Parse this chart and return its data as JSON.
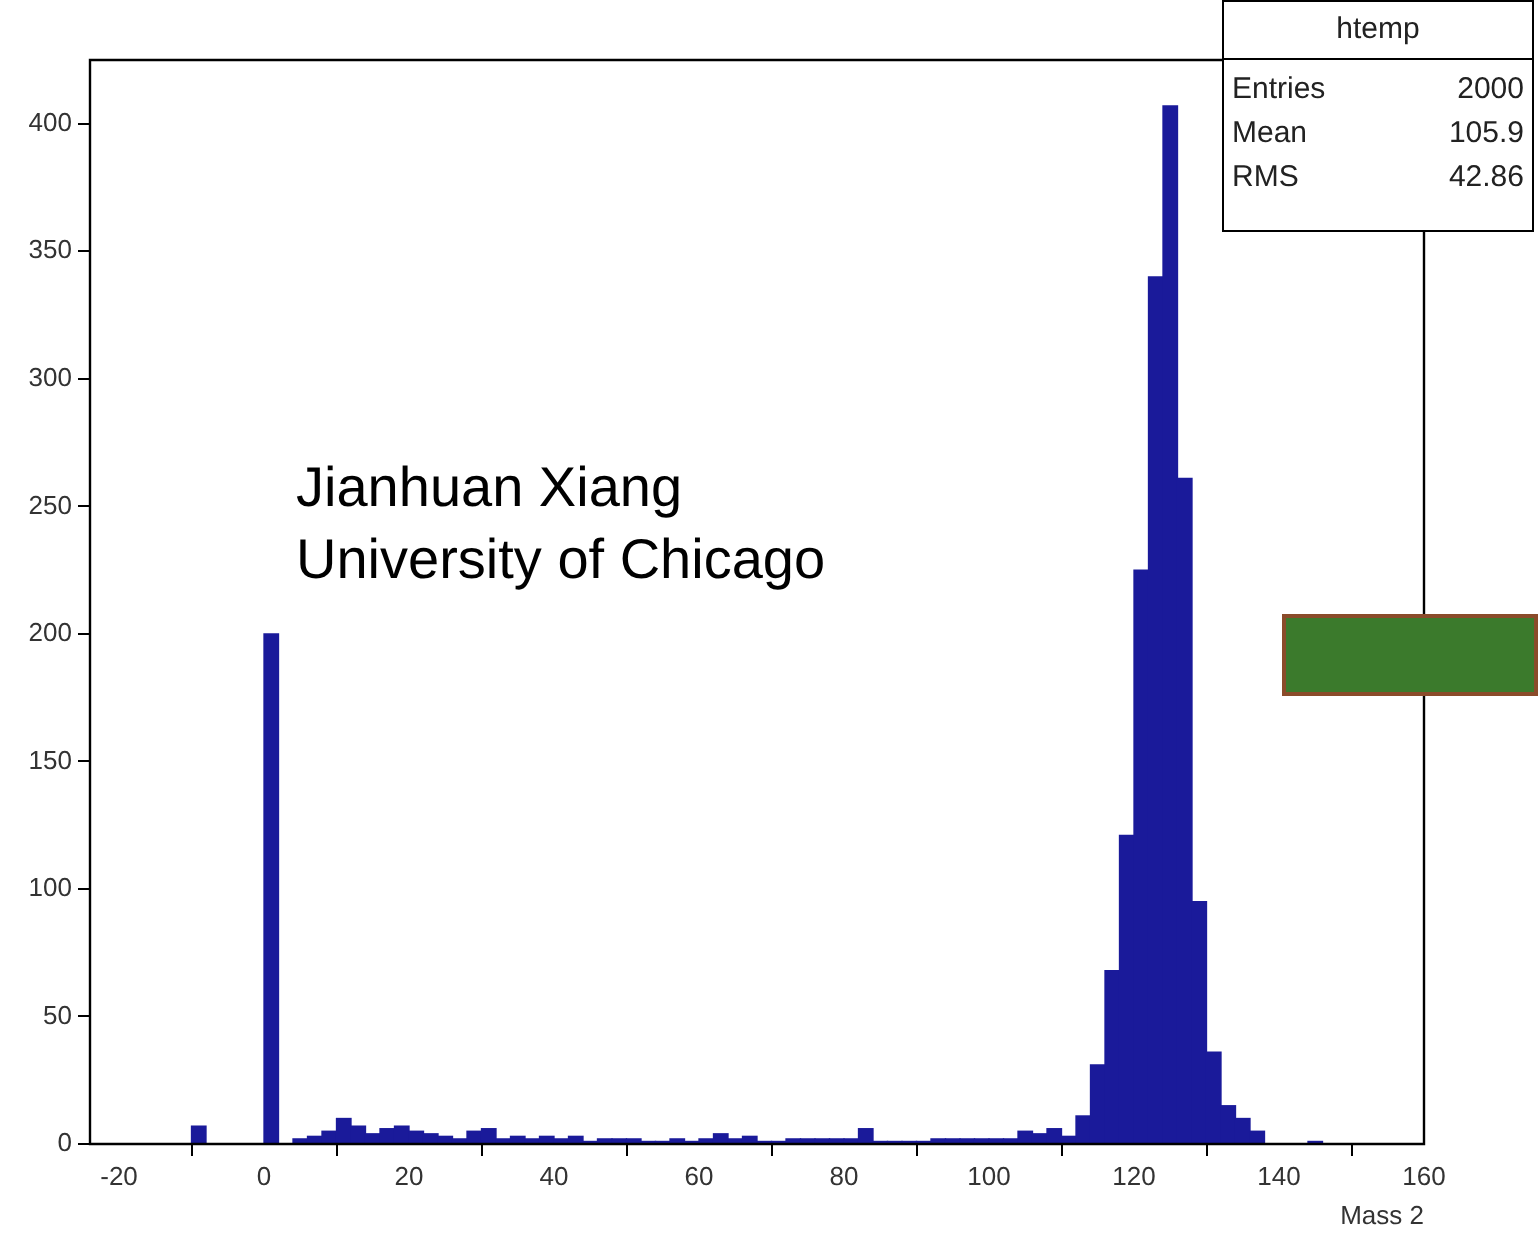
{
  "chart_data": {
    "type": "histogram",
    "xlabel": "Mass 2",
    "bins": [
      -20,
      -18,
      -16,
      -14,
      -12,
      -10,
      -8,
      -6,
      -4,
      -2,
      0,
      2,
      4,
      6,
      8,
      10,
      12,
      14,
      16,
      18,
      20,
      22,
      24,
      26,
      28,
      30,
      32,
      34,
      36,
      38,
      40,
      42,
      44,
      46,
      48,
      50,
      52,
      54,
      56,
      58,
      60,
      62,
      64,
      66,
      68,
      70,
      72,
      74,
      76,
      78,
      80,
      82,
      84,
      86,
      88,
      90,
      92,
      94,
      96,
      98,
      100,
      102,
      104,
      106,
      108,
      110,
      112,
      114,
      116,
      118,
      120,
      122,
      124,
      126,
      128,
      130,
      132,
      134,
      136,
      138,
      140,
      142,
      144,
      146,
      148,
      150,
      152,
      154,
      156,
      158,
      160
    ],
    "values": [
      0,
      0,
      0,
      0,
      0,
      7,
      0,
      0,
      0,
      0,
      200,
      0,
      2,
      3,
      5,
      10,
      7,
      4,
      6,
      7,
      5,
      4,
      3,
      2,
      5,
      6,
      2,
      3,
      2,
      3,
      2,
      3,
      1,
      2,
      2,
      2,
      1,
      1,
      2,
      1,
      2,
      4,
      2,
      3,
      1,
      1,
      2,
      2,
      2,
      2,
      2,
      6,
      1,
      1,
      1,
      1,
      2,
      2,
      2,
      2,
      2,
      2,
      5,
      4,
      6,
      3,
      11,
      31,
      68,
      121,
      225,
      340,
      407,
      261,
      95,
      36,
      15,
      10,
      5,
      0,
      0,
      0,
      1,
      0,
      0,
      0,
      0,
      0,
      0,
      0
    ],
    "color": "#1a1a9a",
    "xlim": [
      -24,
      160
    ],
    "xticks": [
      -20,
      0,
      20,
      40,
      60,
      80,
      100,
      120,
      140,
      160
    ],
    "ylim": [
      0,
      425
    ],
    "yticks": [
      0,
      50,
      100,
      150,
      200,
      250,
      300,
      350,
      400
    ],
    "legend": false,
    "annotations": [
      "htemp",
      "Entries",
      "2000",
      "Mean",
      "105.9",
      "RMS",
      "42.86",
      "Jianhuan Xiang",
      "University of Chicago"
    ]
  }
}
